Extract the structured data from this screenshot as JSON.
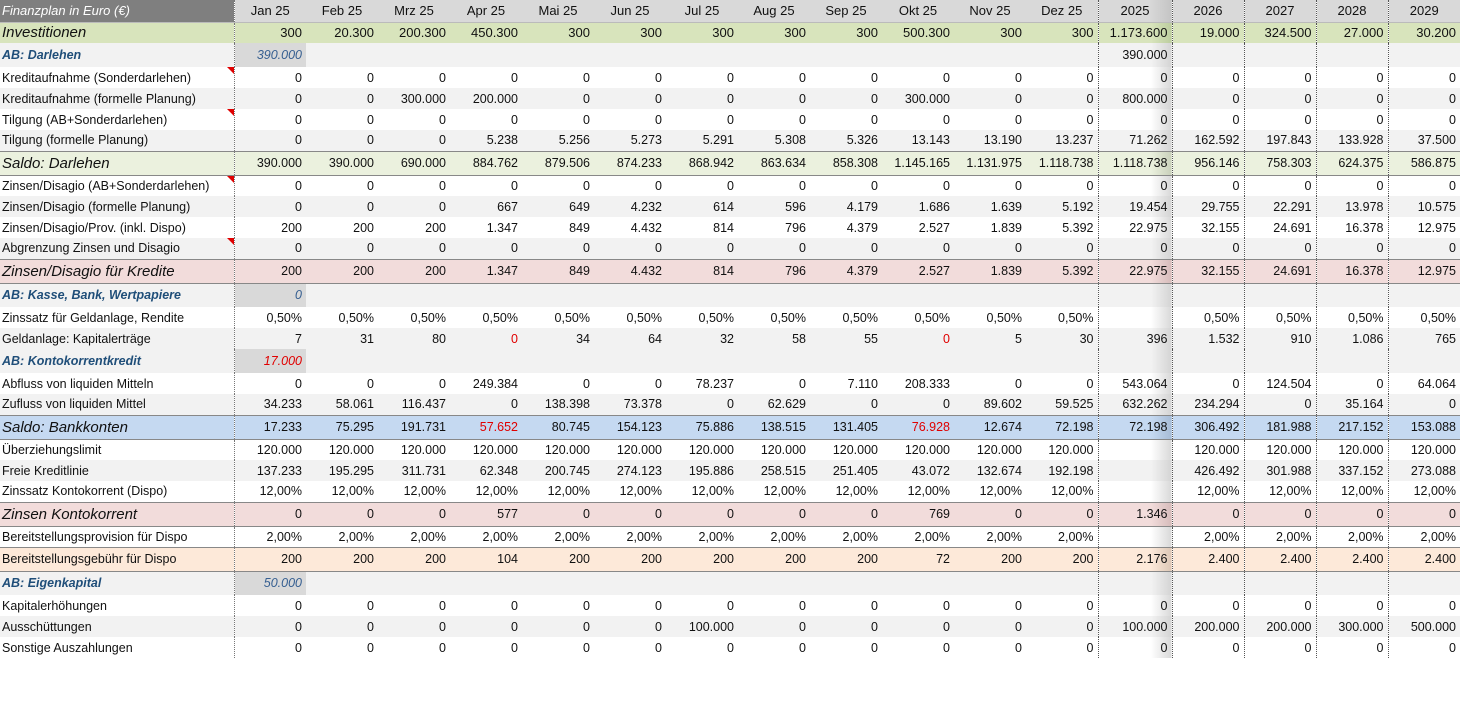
{
  "header": {
    "title": "Finanzplan in Euro (€)",
    "columns": [
      "Jan 25",
      "Feb 25",
      "Mrz 25",
      "Apr 25",
      "Mai 25",
      "Jun 25",
      "Jul 25",
      "Aug 25",
      "Sep 25",
      "Okt 25",
      "Nov 25",
      "Dez 25",
      "2025",
      "2026",
      "2027",
      "2028",
      "2029"
    ]
  },
  "rows": [
    {
      "type": "green",
      "label": "Investitionen",
      "values": [
        "300",
        "20.300",
        "200.300",
        "450.300",
        "300",
        "300",
        "300",
        "300",
        "300",
        "500.300",
        "300",
        "300",
        "1.173.600",
        "19.000",
        "324.500",
        "27.000",
        "30.200"
      ]
    },
    {
      "type": "section",
      "label": "AB: Darlehen",
      "ab": "390.000",
      "year2025": "390.000"
    },
    {
      "type": "norm",
      "label": "Kreditaufnahme (Sonderdarlehen)",
      "comment": true,
      "values": [
        "0",
        "0",
        "0",
        "0",
        "0",
        "0",
        "0",
        "0",
        "0",
        "0",
        "0",
        "0",
        "0",
        "0",
        "0",
        "0",
        "0"
      ]
    },
    {
      "type": "norm",
      "label": "Kreditaufnahme (formelle Planung)",
      "values": [
        "0",
        "0",
        "300.000",
        "200.000",
        "0",
        "0",
        "0",
        "0",
        "0",
        "300.000",
        "0",
        "0",
        "800.000",
        "0",
        "0",
        "0",
        "0"
      ]
    },
    {
      "type": "norm",
      "label": "Tilgung (AB+Sonderdarlehen)",
      "comment": true,
      "values": [
        "0",
        "0",
        "0",
        "0",
        "0",
        "0",
        "0",
        "0",
        "0",
        "0",
        "0",
        "0",
        "0",
        "0",
        "0",
        "0",
        "0"
      ]
    },
    {
      "type": "norm",
      "label": "Tilgung (formelle Planung)",
      "values": [
        "0",
        "0",
        "0",
        "5.238",
        "5.256",
        "5.273",
        "5.291",
        "5.308",
        "5.326",
        "13.143",
        "13.190",
        "13.237",
        "71.262",
        "162.592",
        "197.843",
        "133.928",
        "37.500"
      ]
    },
    {
      "type": "greenbig",
      "label": "Saldo: Darlehen",
      "values": [
        "390.000",
        "390.000",
        "690.000",
        "884.762",
        "879.506",
        "874.233",
        "868.942",
        "863.634",
        "858.308",
        "1.145.165",
        "1.131.975",
        "1.118.738",
        "1.118.738",
        "956.146",
        "758.303",
        "624.375",
        "586.875"
      ]
    },
    {
      "type": "norm",
      "label": "Zinsen/Disagio (AB+Sonderdarlehen)",
      "comment": true,
      "values": [
        "0",
        "0",
        "0",
        "0",
        "0",
        "0",
        "0",
        "0",
        "0",
        "0",
        "0",
        "0",
        "0",
        "0",
        "0",
        "0",
        "0"
      ]
    },
    {
      "type": "norm",
      "label": "Zinsen/Disagio (formelle Planung)",
      "values": [
        "0",
        "0",
        "0",
        "667",
        "649",
        "4.232",
        "614",
        "596",
        "4.179",
        "1.686",
        "1.639",
        "5.192",
        "19.454",
        "29.755",
        "22.291",
        "13.978",
        "10.575"
      ]
    },
    {
      "type": "norm",
      "label": "Zinsen/Disagio/Prov. (inkl. Dispo)",
      "values": [
        "200",
        "200",
        "200",
        "1.347",
        "849",
        "4.432",
        "814",
        "796",
        "4.379",
        "2.527",
        "1.839",
        "5.392",
        "22.975",
        "32.155",
        "24.691",
        "16.378",
        "12.975"
      ]
    },
    {
      "type": "norm",
      "label": "Abgrenzung Zinsen und Disagio",
      "comment": true,
      "values": [
        "0",
        "0",
        "0",
        "0",
        "0",
        "0",
        "0",
        "0",
        "0",
        "0",
        "0",
        "0",
        "0",
        "0",
        "0",
        "0",
        "0"
      ]
    },
    {
      "type": "pink",
      "label": "Zinsen/Disagio für Kredite",
      "values": [
        "200",
        "200",
        "200",
        "1.347",
        "849",
        "4.432",
        "814",
        "796",
        "4.379",
        "2.527",
        "1.839",
        "5.392",
        "22.975",
        "32.155",
        "24.691",
        "16.378",
        "12.975"
      ]
    },
    {
      "type": "section",
      "label": "AB: Kasse, Bank, Wertpapiere",
      "ab": "0",
      "year2025": ""
    },
    {
      "type": "norm",
      "label": "Zinssatz für Geldanlage, Rendite",
      "values": [
        "0,50%",
        "0,50%",
        "0,50%",
        "0,50%",
        "0,50%",
        "0,50%",
        "0,50%",
        "0,50%",
        "0,50%",
        "0,50%",
        "0,50%",
        "0,50%",
        "",
        "0,50%",
        "0,50%",
        "0,50%",
        "0,50%"
      ]
    },
    {
      "type": "norm",
      "label": "Geldanlage: Kapitalerträge",
      "values": [
        "7",
        "31",
        "80",
        "0",
        "34",
        "64",
        "32",
        "58",
        "55",
        "0",
        "5",
        "30",
        "396",
        "1.532",
        "910",
        "1.086",
        "765"
      ],
      "neg": [
        3,
        9
      ]
    },
    {
      "type": "section",
      "label": "AB: Kontokorrentkredit",
      "ab": "17.000",
      "abRed": true,
      "year2025": ""
    },
    {
      "type": "norm",
      "label": "Abfluss von liquiden Mitteln",
      "values": [
        "0",
        "0",
        "0",
        "249.384",
        "0",
        "0",
        "78.237",
        "0",
        "7.110",
        "208.333",
        "0",
        "0",
        "543.064",
        "0",
        "124.504",
        "0",
        "64.064"
      ]
    },
    {
      "type": "norm",
      "label": "Zufluss von liquiden Mittel",
      "values": [
        "34.233",
        "58.061",
        "116.437",
        "0",
        "138.398",
        "73.378",
        "0",
        "62.629",
        "0",
        "0",
        "89.602",
        "59.525",
        "632.262",
        "234.294",
        "0",
        "35.164",
        "0"
      ]
    },
    {
      "type": "blue",
      "label": "Saldo: Bankkonten",
      "values": [
        "17.233",
        "75.295",
        "191.731",
        "57.652",
        "80.745",
        "154.123",
        "75.886",
        "138.515",
        "131.405",
        "76.928",
        "12.674",
        "72.198",
        "72.198",
        "306.492",
        "181.988",
        "217.152",
        "153.088"
      ],
      "neg": [
        3,
        9
      ]
    },
    {
      "type": "norm",
      "label": "Überziehungslimit",
      "values": [
        "120.000",
        "120.000",
        "120.000",
        "120.000",
        "120.000",
        "120.000",
        "120.000",
        "120.000",
        "120.000",
        "120.000",
        "120.000",
        "120.000",
        "",
        "120.000",
        "120.000",
        "120.000",
        "120.000"
      ]
    },
    {
      "type": "norm",
      "label": "Freie Kreditlinie",
      "values": [
        "137.233",
        "195.295",
        "311.731",
        "62.348",
        "200.745",
        "274.123",
        "195.886",
        "258.515",
        "251.405",
        "43.072",
        "132.674",
        "192.198",
        "",
        "426.492",
        "301.988",
        "337.152",
        "273.088"
      ]
    },
    {
      "type": "norm",
      "label": "Zinssatz Kontokorrent (Dispo)",
      "values": [
        "12,00%",
        "12,00%",
        "12,00%",
        "12,00%",
        "12,00%",
        "12,00%",
        "12,00%",
        "12,00%",
        "12,00%",
        "12,00%",
        "12,00%",
        "12,00%",
        "",
        "12,00%",
        "12,00%",
        "12,00%",
        "12,00%"
      ]
    },
    {
      "type": "pink",
      "label": "Zinsen Kontokorrent",
      "values": [
        "0",
        "0",
        "0",
        "577",
        "0",
        "0",
        "0",
        "0",
        "0",
        "769",
        "0",
        "0",
        "1.346",
        "0",
        "0",
        "0",
        "0"
      ]
    },
    {
      "type": "norm",
      "label": "Bereitstellungsprovision für Dispo",
      "values": [
        "2,00%",
        "2,00%",
        "2,00%",
        "2,00%",
        "2,00%",
        "2,00%",
        "2,00%",
        "2,00%",
        "2,00%",
        "2,00%",
        "2,00%",
        "2,00%",
        "",
        "2,00%",
        "2,00%",
        "2,00%",
        "2,00%"
      ]
    },
    {
      "type": "peach",
      "label": "Bereitstellungsgebühr für Dispo",
      "values": [
        "200",
        "200",
        "200",
        "104",
        "200",
        "200",
        "200",
        "200",
        "200",
        "72",
        "200",
        "200",
        "2.176",
        "2.400",
        "2.400",
        "2.400",
        "2.400"
      ]
    },
    {
      "type": "section",
      "label": "AB: Eigenkapital",
      "ab": "50.000",
      "year2025": ""
    },
    {
      "type": "norm",
      "label": "Kapitalerhöhungen",
      "values": [
        "0",
        "0",
        "0",
        "0",
        "0",
        "0",
        "0",
        "0",
        "0",
        "0",
        "0",
        "0",
        "0",
        "0",
        "0",
        "0",
        "0"
      ]
    },
    {
      "type": "norm",
      "label": "Ausschüttungen",
      "values": [
        "0",
        "0",
        "0",
        "0",
        "0",
        "0",
        "100.000",
        "0",
        "0",
        "0",
        "0",
        "0",
        "100.000",
        "200.000",
        "200.000",
        "300.000",
        "500.000"
      ]
    },
    {
      "type": "norm",
      "label": "Sonstige Auszahlungen",
      "values": [
        "0",
        "0",
        "0",
        "0",
        "0",
        "0",
        "0",
        "0",
        "0",
        "0",
        "0",
        "0",
        "0",
        "0",
        "0",
        "0",
        "0"
      ]
    }
  ]
}
